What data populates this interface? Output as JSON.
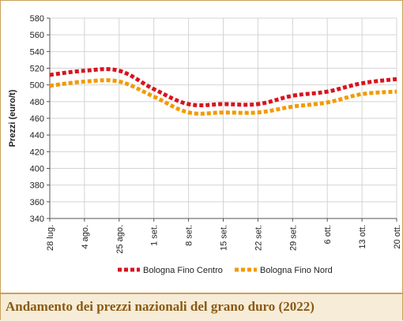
{
  "footer": {
    "title": "Andamento dei prezzi nazionali del grano duro (2022)"
  },
  "chart_data": {
    "type": "line",
    "title": "Andamento dei prezzi nazionali del grano duro (2022)",
    "ylabel": "Prezzi (euro/t)",
    "xlabel": "",
    "ylim": [
      340,
      580
    ],
    "yticks": [
      340,
      360,
      380,
      400,
      420,
      440,
      460,
      480,
      500,
      520,
      540,
      560,
      580
    ],
    "categories": [
      "28 lug.",
      "4 ago.",
      "25 ago.",
      "1 set.",
      "8 set.",
      "15 set.",
      "22 set.",
      "29 set.",
      "6 ott.",
      "13 ott.",
      "20 ott."
    ],
    "grid": true,
    "legend_position": "bottom",
    "series": [
      {
        "name": "Bologna Fino Centro",
        "color": "#d7141e",
        "values": [
          512,
          517,
          517,
          495,
          477,
          477,
          477,
          487,
          492,
          502,
          507
        ]
      },
      {
        "name": "Bologna Fino Nord",
        "color": "#f29a00",
        "values": [
          499,
          504,
          504,
          486,
          467,
          467,
          467,
          474,
          479,
          489,
          492
        ]
      }
    ]
  }
}
